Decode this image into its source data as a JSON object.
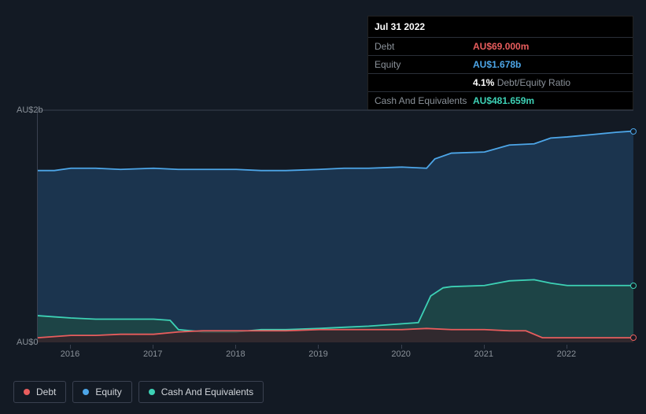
{
  "tooltip": {
    "date": "Jul 31 2022",
    "rows": [
      {
        "label": "Debt",
        "value": "AU$69.000m",
        "cls": "debt-color"
      },
      {
        "label": "Equity",
        "value": "AU$1.678b",
        "cls": "equity-color"
      }
    ],
    "ratio_val": "4.1%",
    "ratio_label": " Debt/Equity Ratio",
    "cash_label": "Cash And Equivalents",
    "cash_value": "AU$481.659m"
  },
  "chart": {
    "type": "area",
    "background": "#131a24",
    "grid_color": "#3a4150",
    "xlim": [
      2015.6,
      2022.8
    ],
    "ylim": [
      0,
      2.0
    ],
    "y_ticks": [
      {
        "v": 0,
        "label": "AU$0"
      },
      {
        "v": 2.0,
        "label": "AU$2b"
      }
    ],
    "x_ticks": [
      2016,
      2017,
      2018,
      2019,
      2020,
      2021,
      2022
    ],
    "series": {
      "equity": {
        "color": "#4da6e8",
        "fill": "#1d3a56",
        "fill_opacity": 0.85,
        "points": [
          [
            2015.6,
            1.48
          ],
          [
            2015.8,
            1.48
          ],
          [
            2016.0,
            1.5
          ],
          [
            2016.3,
            1.5
          ],
          [
            2016.6,
            1.49
          ],
          [
            2017.0,
            1.5
          ],
          [
            2017.3,
            1.49
          ],
          [
            2017.6,
            1.49
          ],
          [
            2018.0,
            1.49
          ],
          [
            2018.3,
            1.48
          ],
          [
            2018.6,
            1.48
          ],
          [
            2019.0,
            1.49
          ],
          [
            2019.3,
            1.5
          ],
          [
            2019.6,
            1.5
          ],
          [
            2020.0,
            1.51
          ],
          [
            2020.3,
            1.5
          ],
          [
            2020.4,
            1.58
          ],
          [
            2020.6,
            1.63
          ],
          [
            2021.0,
            1.64
          ],
          [
            2021.3,
            1.7
          ],
          [
            2021.6,
            1.71
          ],
          [
            2021.8,
            1.76
          ],
          [
            2022.0,
            1.77
          ],
          [
            2022.3,
            1.79
          ],
          [
            2022.6,
            1.81
          ],
          [
            2022.8,
            1.82
          ]
        ]
      },
      "cash": {
        "color": "#3dd1b5",
        "fill": "#1f4a44",
        "fill_opacity": 0.75,
        "points": [
          [
            2015.6,
            0.23
          ],
          [
            2015.8,
            0.22
          ],
          [
            2016.0,
            0.21
          ],
          [
            2016.3,
            0.2
          ],
          [
            2016.6,
            0.2
          ],
          [
            2017.0,
            0.2
          ],
          [
            2017.2,
            0.19
          ],
          [
            2017.3,
            0.11
          ],
          [
            2017.6,
            0.09
          ],
          [
            2018.0,
            0.09
          ],
          [
            2018.3,
            0.11
          ],
          [
            2018.6,
            0.11
          ],
          [
            2019.0,
            0.12
          ],
          [
            2019.3,
            0.13
          ],
          [
            2019.6,
            0.14
          ],
          [
            2020.0,
            0.16
          ],
          [
            2020.2,
            0.17
          ],
          [
            2020.35,
            0.4
          ],
          [
            2020.5,
            0.47
          ],
          [
            2020.6,
            0.48
          ],
          [
            2021.0,
            0.49
          ],
          [
            2021.3,
            0.53
          ],
          [
            2021.6,
            0.54
          ],
          [
            2021.8,
            0.51
          ],
          [
            2022.0,
            0.49
          ],
          [
            2022.3,
            0.49
          ],
          [
            2022.6,
            0.49
          ],
          [
            2022.8,
            0.49
          ]
        ]
      },
      "debt": {
        "color": "#e85d5d",
        "fill": "#3a1e23",
        "fill_opacity": 0.7,
        "points": [
          [
            2015.6,
            0.04
          ],
          [
            2015.8,
            0.05
          ],
          [
            2016.0,
            0.06
          ],
          [
            2016.3,
            0.06
          ],
          [
            2016.6,
            0.07
          ],
          [
            2017.0,
            0.07
          ],
          [
            2017.3,
            0.09
          ],
          [
            2017.6,
            0.1
          ],
          [
            2018.0,
            0.1
          ],
          [
            2018.3,
            0.1
          ],
          [
            2018.6,
            0.1
          ],
          [
            2019.0,
            0.11
          ],
          [
            2019.3,
            0.11
          ],
          [
            2019.6,
            0.11
          ],
          [
            2020.0,
            0.11
          ],
          [
            2020.3,
            0.12
          ],
          [
            2020.6,
            0.11
          ],
          [
            2021.0,
            0.11
          ],
          [
            2021.3,
            0.1
          ],
          [
            2021.5,
            0.1
          ],
          [
            2021.7,
            0.04
          ],
          [
            2022.0,
            0.04
          ],
          [
            2022.3,
            0.04
          ],
          [
            2022.6,
            0.04
          ],
          [
            2022.8,
            0.04
          ]
        ]
      }
    },
    "end_markers": [
      {
        "series": "equity",
        "color": "#4da6e8"
      },
      {
        "series": "cash",
        "color": "#3dd1b5"
      },
      {
        "series": "debt",
        "color": "#e85d5d"
      }
    ]
  },
  "legend": [
    {
      "label": "Debt",
      "color": "#e85d5d"
    },
    {
      "label": "Equity",
      "color": "#4da6e8"
    },
    {
      "label": "Cash And Equivalents",
      "color": "#3dd1b5"
    }
  ]
}
